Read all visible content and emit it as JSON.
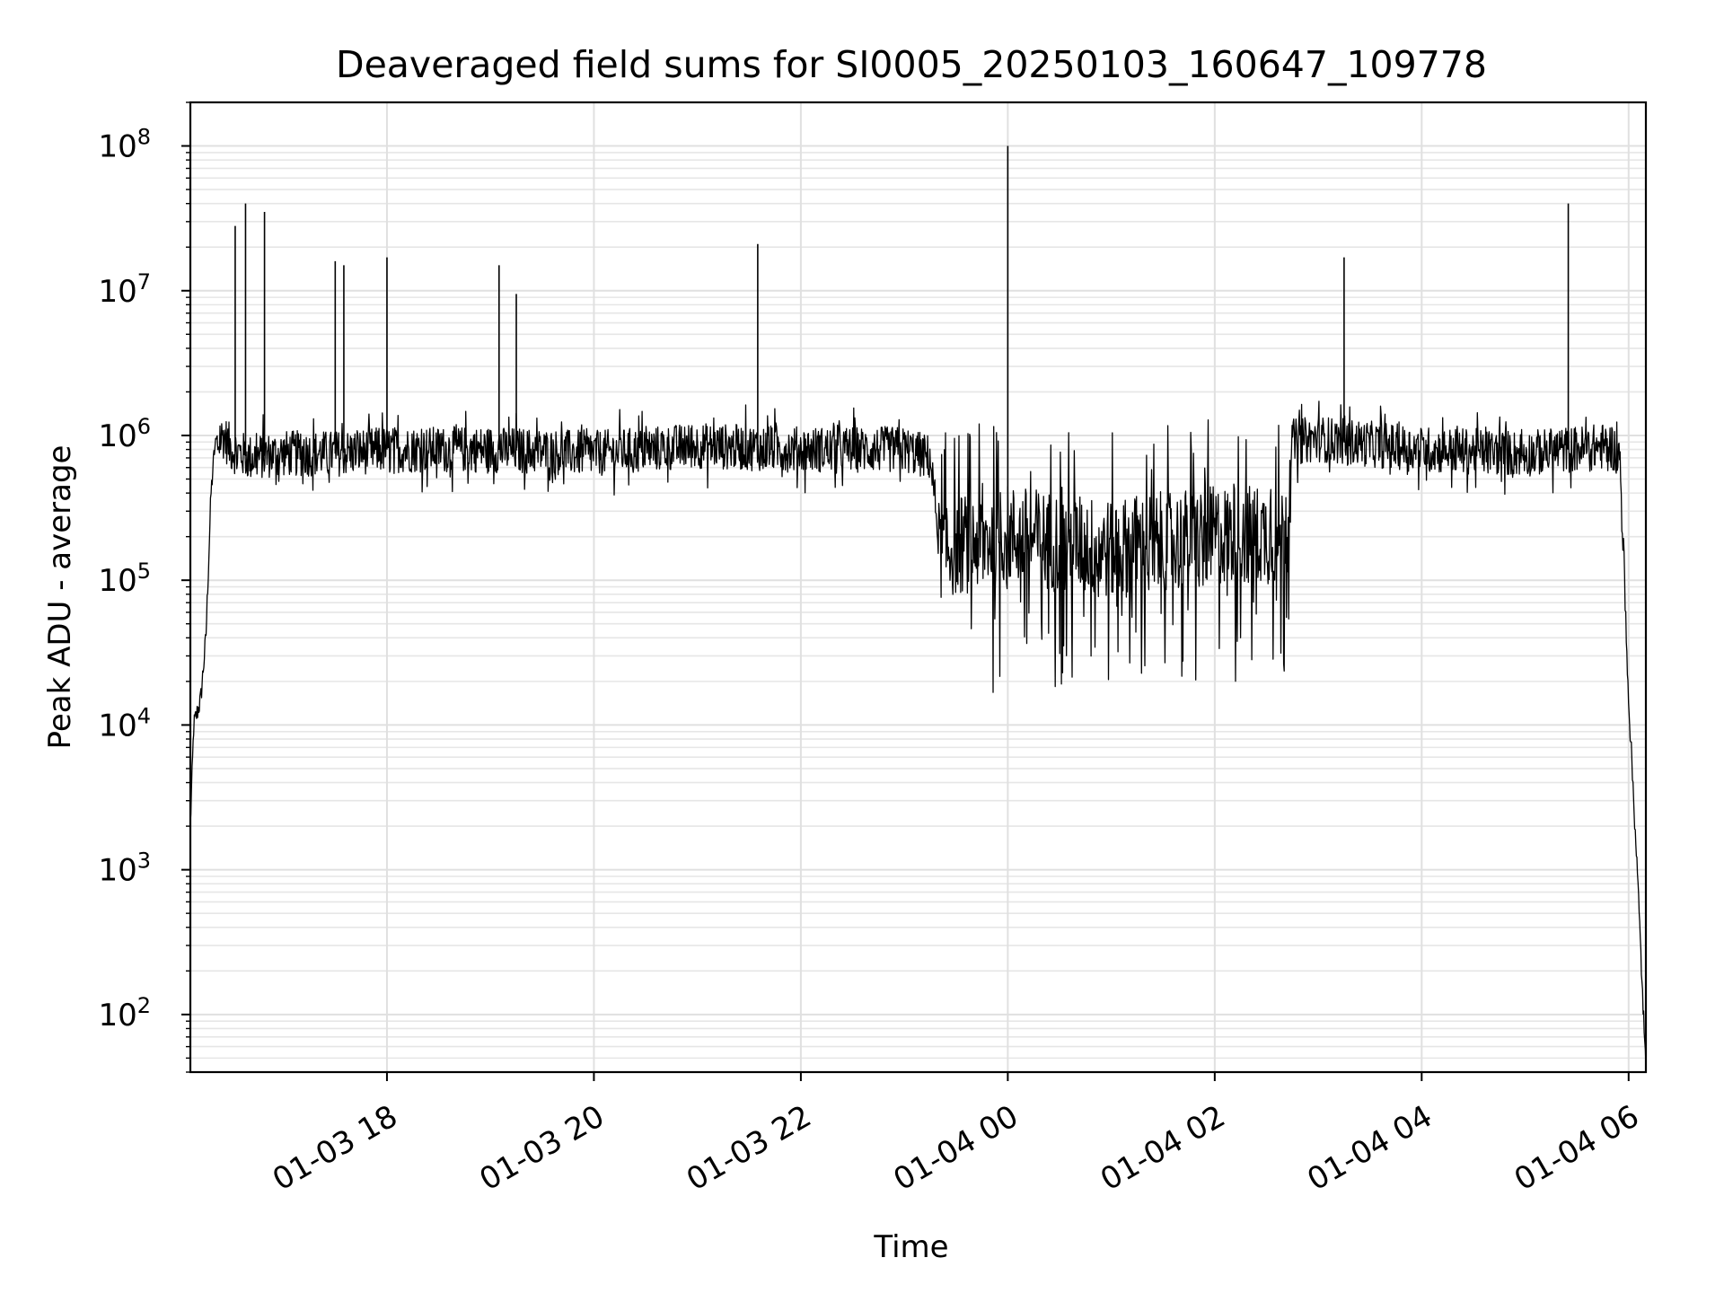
{
  "chart_data": {
    "type": "line",
    "title": "Deaveraged field sums for SI0005_20250103_160647_109778",
    "xlabel": "Time",
    "ylabel": "Peak ADU - average",
    "yscale": "log",
    "ylim": [
      40,
      200000000
    ],
    "xlim": [
      "2025-01-03 16:06",
      "2025-01-04 06:10"
    ],
    "grid": true,
    "x_ticks": [
      "01-03 18",
      "01-03 20",
      "01-03 22",
      "01-04 00",
      "01-04 02",
      "01-04 04",
      "01-04 06"
    ],
    "y_ticks": [
      "10^2",
      "10^3",
      "10^4",
      "10^5",
      "10^6",
      "10^7",
      "10^8"
    ],
    "series_color": "#000000",
    "series": [
      {
        "x": [
          "2025-01-03 16:06",
          "2025-01-03 16:08",
          "2025-01-03 16:12",
          "2025-01-03 16:15",
          "2025-01-03 16:18",
          "2025-01-03 16:20",
          "2025-01-03 16:25",
          "2025-01-03 16:30",
          "2025-01-03 16:40",
          "2025-01-03 17:00",
          "2025-01-03 17:30",
          "2025-01-03 18:00",
          "2025-01-03 19:00",
          "2025-01-03 20:00",
          "2025-01-03 21:00",
          "2025-01-03 22:00",
          "2025-01-03 23:00",
          "2025-01-03 23:15",
          "2025-01-03 23:20",
          "2025-01-04 00:00",
          "2025-01-04 01:00",
          "2025-01-04 02:00",
          "2025-01-04 02:40",
          "2025-01-04 02:45",
          "2025-01-04 03:00",
          "2025-01-04 04:00",
          "2025-01-04 05:00",
          "2025-01-04 05:50",
          "2025-01-04 05:55",
          "2025-01-04 06:00",
          "2025-01-04 06:05",
          "2025-01-04 06:10"
        ],
        "y": [
          2000,
          10000,
          15000,
          40000,
          400000,
          800000,
          1000000,
          800000,
          700000,
          750000,
          750000,
          800000,
          800000,
          750000,
          850000,
          800000,
          800000,
          700000,
          200000,
          250000,
          200000,
          250000,
          250000,
          900000,
          950000,
          800000,
          750000,
          850000,
          700000,
          15000,
          1000,
          40
        ]
      }
    ],
    "spikes": [
      {
        "x": "2025-01-03 16:32",
        "y": 28000000
      },
      {
        "x": "2025-01-03 16:38",
        "y": 40000000
      },
      {
        "x": "2025-01-03 16:49",
        "y": 35000000
      },
      {
        "x": "2025-01-03 17:30",
        "y": 16000000
      },
      {
        "x": "2025-01-03 17:35",
        "y": 15000000
      },
      {
        "x": "2025-01-03 18:00",
        "y": 17000000
      },
      {
        "x": "2025-01-03 19:05",
        "y": 15000000
      },
      {
        "x": "2025-01-03 19:15",
        "y": 9500000
      },
      {
        "x": "2025-01-03 21:35",
        "y": 21000000
      },
      {
        "x": "2025-01-04 00:00",
        "y": 100000000
      },
      {
        "x": "2025-01-04 03:15",
        "y": 17000000
      },
      {
        "x": "2025-01-04 05:25",
        "y": 40000000
      }
    ]
  }
}
